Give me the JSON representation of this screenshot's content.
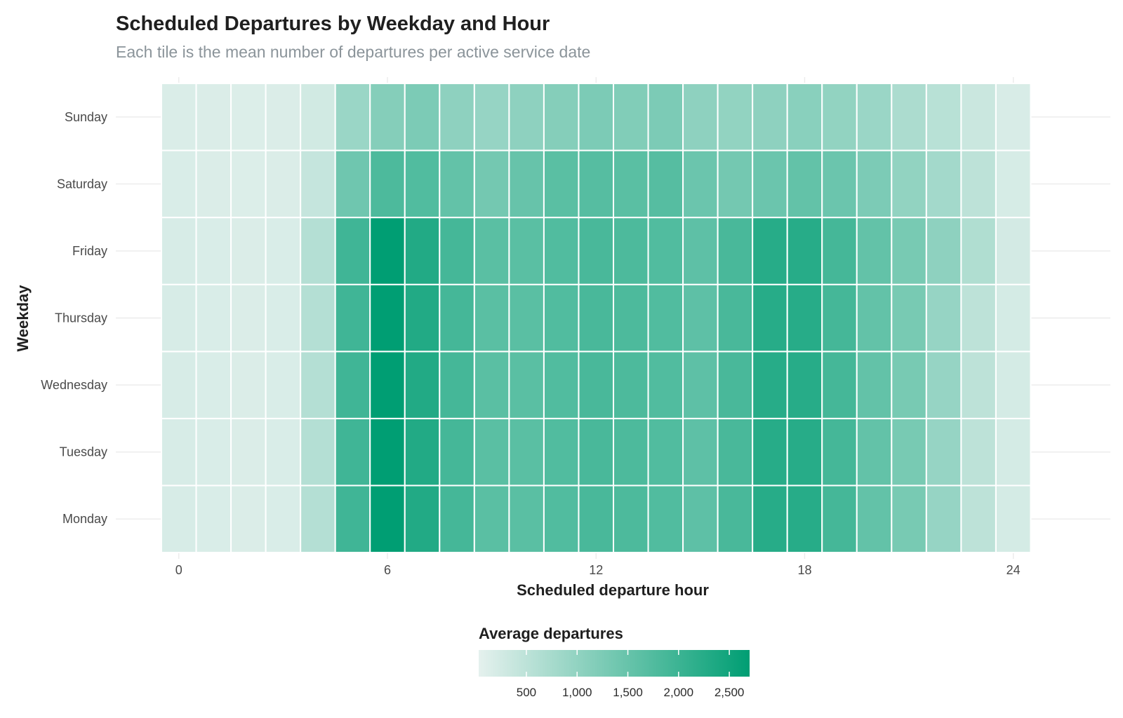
{
  "chart_data": {
    "type": "heatmap",
    "title": "Scheduled Departures by Weekday and Hour",
    "subtitle": "Each tile is the mean number of departures per active service date",
    "xlabel": "Scheduled departure hour",
    "ylabel": "Weekday",
    "x_ticks": [
      0,
      6,
      12,
      18,
      24
    ],
    "x_range": [
      -0.5,
      25.5
    ],
    "hours": [
      0,
      1,
      2,
      3,
      4,
      5,
      6,
      7,
      8,
      9,
      10,
      11,
      12,
      13,
      14,
      15,
      16,
      17,
      18,
      19,
      20,
      21,
      22,
      23,
      24
    ],
    "weekdays": [
      "Monday",
      "Tuesday",
      "Wednesday",
      "Thursday",
      "Friday",
      "Saturday",
      "Sunday"
    ],
    "values": {
      "Sunday": [
        160,
        150,
        140,
        150,
        260,
        900,
        1150,
        1250,
        1050,
        950,
        1050,
        1150,
        1250,
        1200,
        1250,
        1050,
        1000,
        1050,
        1100,
        1000,
        900,
        700,
        550,
        350,
        180
      ],
      "Saturday": [
        170,
        150,
        140,
        150,
        400,
        1400,
        1800,
        1750,
        1550,
        1350,
        1500,
        1650,
        1700,
        1650,
        1700,
        1450,
        1350,
        1450,
        1550,
        1450,
        1250,
        1000,
        800,
        500,
        200
      ],
      "Friday": [
        190,
        170,
        150,
        170,
        600,
        1950,
        2700,
        2300,
        1900,
        1650,
        1650,
        1750,
        1850,
        1800,
        1750,
        1600,
        1850,
        2250,
        2250,
        1900,
        1550,
        1300,
        1050,
        650,
        240
      ],
      "Thursday": [
        190,
        170,
        150,
        170,
        600,
        1950,
        2700,
        2300,
        1900,
        1650,
        1650,
        1750,
        1850,
        1800,
        1750,
        1600,
        1850,
        2250,
        2250,
        1900,
        1550,
        1300,
        950,
        500,
        230
      ],
      "Wednesday": [
        190,
        170,
        150,
        170,
        600,
        1950,
        2700,
        2300,
        1900,
        1650,
        1650,
        1750,
        1850,
        1800,
        1750,
        1600,
        1850,
        2250,
        2250,
        1900,
        1550,
        1300,
        950,
        500,
        230
      ],
      "Tuesday": [
        190,
        170,
        150,
        170,
        600,
        1950,
        2700,
        2300,
        1900,
        1650,
        1650,
        1750,
        1850,
        1800,
        1750,
        1600,
        1850,
        2250,
        2250,
        1900,
        1550,
        1300,
        950,
        500,
        230
      ],
      "Monday": [
        190,
        170,
        150,
        170,
        600,
        1950,
        2700,
        2300,
        1900,
        1650,
        1650,
        1750,
        1850,
        1800,
        1750,
        1600,
        1850,
        2250,
        2250,
        1900,
        1550,
        1300,
        950,
        500,
        230
      ]
    },
    "legend": {
      "title": "Average departures",
      "position": "bottom",
      "breaks": [
        500,
        1000,
        1500,
        2000,
        2500
      ],
      "break_labels": [
        "500",
        "1,000",
        "1,500",
        "2,000",
        "2,500"
      ],
      "range": [
        30,
        2700
      ],
      "color_low": "#e5f1ee",
      "color_high": "#009e73"
    },
    "grid": true
  }
}
